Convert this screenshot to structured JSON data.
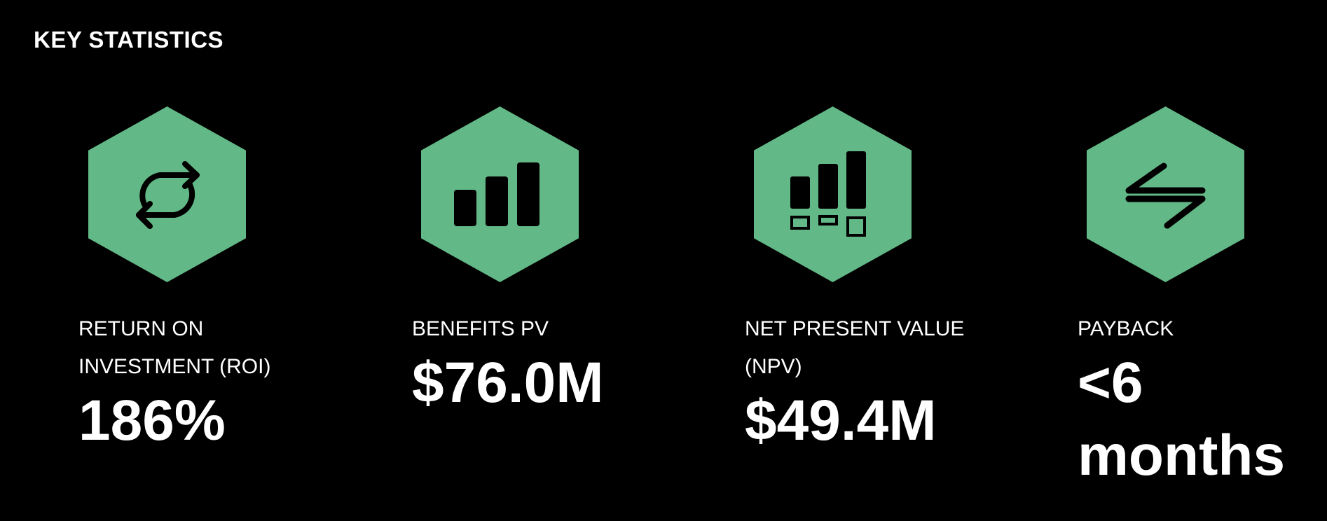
{
  "header": {
    "title": "KEY STATISTICS"
  },
  "stats": [
    {
      "label": "RETURN ON INVESTMENT (ROI)",
      "value": "186%"
    },
    {
      "label": "BENEFITS PV",
      "value": "$76.0M"
    },
    {
      "label": "NET PRESENT VALUE (NPV)",
      "value": "$49.4M"
    },
    {
      "label": "PAYBACK",
      "value": "<6 months"
    }
  ]
}
